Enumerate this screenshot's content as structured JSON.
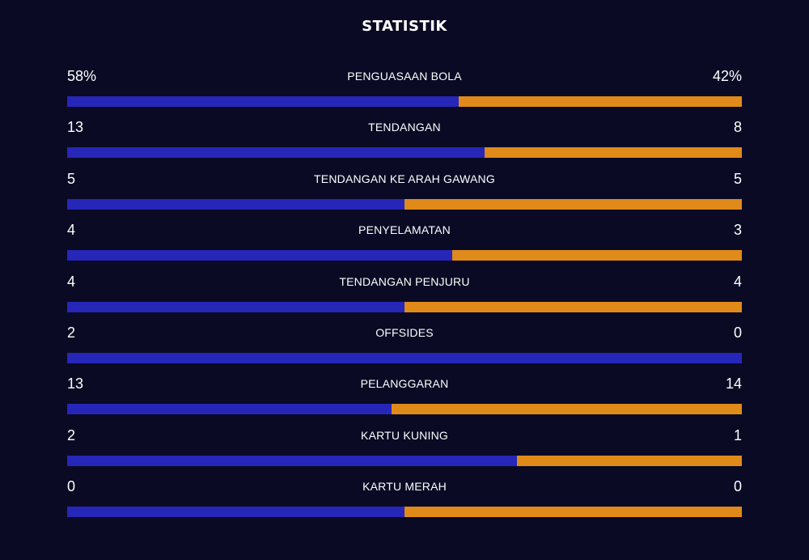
{
  "title": "STATISTIK",
  "colors": {
    "home": "#2626b8",
    "away": "#e08a1a",
    "background": "#0a0a24"
  },
  "stats": [
    {
      "label": "PENGUASAAN BOLA",
      "home": "58%",
      "away": "42%",
      "home_share": 0.58
    },
    {
      "label": "TENDANGAN",
      "home": "13",
      "away": "8",
      "home_share": 0.619
    },
    {
      "label": "TENDANGAN KE ARAH GAWANG",
      "home": "5",
      "away": "5",
      "home_share": 0.5
    },
    {
      "label": "PENYELAMATAN",
      "home": "4",
      "away": "3",
      "home_share": 0.571
    },
    {
      "label": "TENDANGAN PENJURU",
      "home": "4",
      "away": "4",
      "home_share": 0.5
    },
    {
      "label": "OFFSIDES",
      "home": "2",
      "away": "0",
      "home_share": 1.0
    },
    {
      "label": "PELANGGARAN",
      "home": "13",
      "away": "14",
      "home_share": 0.481
    },
    {
      "label": "KARTU KUNING",
      "home": "2",
      "away": "1",
      "home_share": 0.667
    },
    {
      "label": "KARTU MERAH",
      "home": "0",
      "away": "0",
      "home_share": 0.5
    }
  ]
}
